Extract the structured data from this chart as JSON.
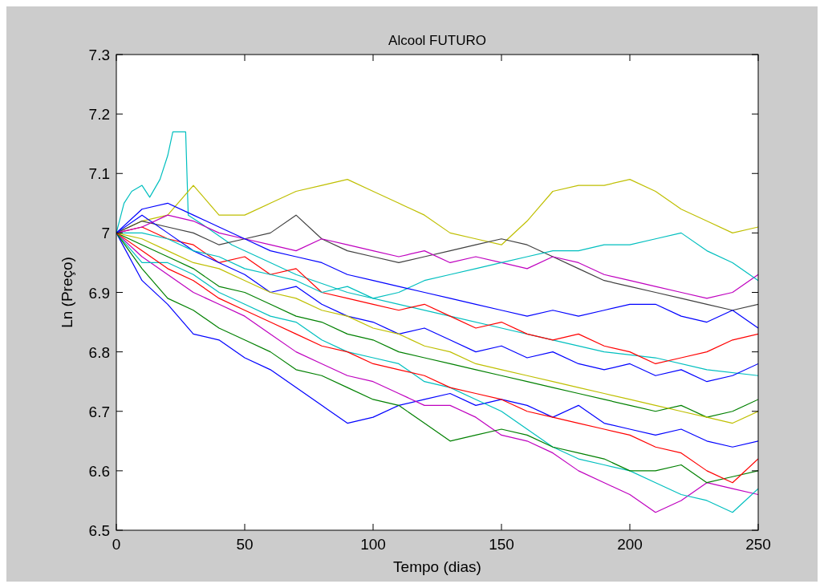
{
  "chart_data": {
    "type": "line",
    "title": "Alcool FUTURO",
    "xlabel": "Tempo (dias)",
    "ylabel": "Ln (Preço)",
    "xlim": [
      0,
      250
    ],
    "xticks": [
      0,
      50,
      100,
      150,
      200,
      250
    ],
    "ylim": [
      6.5,
      7.3
    ],
    "yticks": [
      6.5,
      6.6,
      6.7,
      6.8,
      6.9,
      7,
      7.1,
      7.2,
      7.3
    ],
    "x": [
      0,
      10,
      20,
      30,
      40,
      50,
      60,
      70,
      80,
      90,
      100,
      110,
      120,
      130,
      140,
      150,
      160,
      170,
      180,
      190,
      200,
      210,
      220,
      230,
      240,
      250
    ],
    "series": [
      {
        "color": "#00bfbf",
        "x": [
          0,
          3,
          6,
          10,
          13,
          17,
          20,
          22,
          27,
          28,
          35,
          45,
          55,
          70,
          90,
          110,
          130,
          150,
          170,
          190,
          210,
          230,
          250
        ],
        "values": [
          7.0,
          7.05,
          7.07,
          7.08,
          7.06,
          7.09,
          7.13,
          7.17,
          7.17,
          7.03,
          7.01,
          6.98,
          6.96,
          6.93,
          6.9,
          6.88,
          6.86,
          6.84,
          6.82,
          6.8,
          6.79,
          6.77,
          6.76
        ]
      },
      {
        "color": "#bfbf00",
        "values": [
          7.0,
          7.02,
          7.03,
          7.08,
          7.03,
          7.03,
          7.05,
          7.07,
          7.08,
          7.09,
          7.07,
          7.05,
          7.03,
          7.0,
          6.99,
          6.98,
          7.02,
          7.07,
          7.08,
          7.08,
          7.09,
          7.07,
          7.04,
          7.02,
          7.0,
          7.01
        ]
      },
      {
        "color": "#0000ff",
        "values": [
          7.0,
          6.92,
          6.88,
          6.83,
          6.82,
          6.79,
          6.77,
          6.74,
          6.71,
          6.68,
          6.69,
          6.71,
          6.72,
          6.73,
          6.71,
          6.72,
          6.71,
          6.69,
          6.71,
          6.68,
          6.67,
          6.66,
          6.67,
          6.65,
          6.64,
          6.65
        ]
      },
      {
        "color": "#bf00bf",
        "values": [
          7.0,
          6.96,
          6.93,
          6.9,
          6.88,
          6.86,
          6.83,
          6.8,
          6.78,
          6.76,
          6.75,
          6.73,
          6.71,
          6.71,
          6.69,
          6.66,
          6.65,
          6.63,
          6.6,
          6.58,
          6.56,
          6.53,
          6.55,
          6.58,
          6.57,
          6.56
        ]
      },
      {
        "color": "#00bfbf",
        "values": [
          7.0,
          6.95,
          6.95,
          6.93,
          6.9,
          6.88,
          6.86,
          6.85,
          6.82,
          6.8,
          6.79,
          6.78,
          6.75,
          6.74,
          6.72,
          6.7,
          6.67,
          6.64,
          6.62,
          6.61,
          6.6,
          6.58,
          6.56,
          6.55,
          6.53,
          6.57
        ]
      },
      {
        "color": "#008000",
        "values": [
          7.0,
          6.94,
          6.89,
          6.87,
          6.84,
          6.82,
          6.8,
          6.77,
          6.76,
          6.74,
          6.72,
          6.71,
          6.68,
          6.65,
          6.66,
          6.67,
          6.66,
          6.64,
          6.63,
          6.62,
          6.6,
          6.6,
          6.61,
          6.58,
          6.59,
          6.6
        ]
      },
      {
        "color": "#404040",
        "values": [
          7.0,
          7.02,
          7.01,
          7.0,
          6.98,
          6.99,
          7.0,
          7.03,
          6.99,
          6.97,
          6.96,
          6.95,
          6.96,
          6.97,
          6.98,
          6.99,
          6.98,
          6.96,
          6.94,
          6.92,
          6.91,
          6.9,
          6.89,
          6.88,
          6.87,
          6.88
        ]
      },
      {
        "color": "#ff0000",
        "values": [
          7.0,
          7.01,
          6.99,
          6.98,
          6.95,
          6.96,
          6.93,
          6.94,
          6.9,
          6.89,
          6.88,
          6.87,
          6.88,
          6.86,
          6.84,
          6.85,
          6.83,
          6.82,
          6.83,
          6.81,
          6.8,
          6.78,
          6.79,
          6.8,
          6.82,
          6.83
        ]
      },
      {
        "color": "#0000ff",
        "values": [
          7.0,
          7.03,
          7.0,
          6.97,
          6.95,
          6.93,
          6.9,
          6.91,
          6.88,
          6.86,
          6.85,
          6.83,
          6.84,
          6.82,
          6.8,
          6.81,
          6.79,
          6.8,
          6.78,
          6.77,
          6.78,
          6.76,
          6.77,
          6.75,
          6.76,
          6.78
        ]
      },
      {
        "color": "#008000",
        "values": [
          7.0,
          6.98,
          6.96,
          6.94,
          6.91,
          6.9,
          6.88,
          6.86,
          6.85,
          6.83,
          6.82,
          6.8,
          6.79,
          6.78,
          6.77,
          6.76,
          6.75,
          6.74,
          6.73,
          6.72,
          6.71,
          6.7,
          6.71,
          6.69,
          6.7,
          6.72
        ]
      },
      {
        "color": "#bf00bf",
        "values": [
          7.0,
          7.01,
          7.03,
          7.02,
          7.0,
          6.99,
          6.98,
          6.97,
          6.99,
          6.98,
          6.97,
          6.96,
          6.97,
          6.95,
          6.96,
          6.95,
          6.94,
          6.96,
          6.95,
          6.93,
          6.92,
          6.91,
          6.9,
          6.89,
          6.9,
          6.93
        ]
      },
      {
        "color": "#bfbf00",
        "values": [
          7.0,
          6.99,
          6.97,
          6.95,
          6.94,
          6.92,
          6.9,
          6.89,
          6.87,
          6.86,
          6.84,
          6.83,
          6.81,
          6.8,
          6.78,
          6.77,
          6.76,
          6.75,
          6.74,
          6.73,
          6.72,
          6.71,
          6.7,
          6.69,
          6.68,
          6.7
        ]
      },
      {
        "color": "#ff0000",
        "values": [
          7.0,
          6.97,
          6.94,
          6.92,
          6.89,
          6.87,
          6.85,
          6.83,
          6.81,
          6.8,
          6.78,
          6.77,
          6.76,
          6.74,
          6.73,
          6.72,
          6.7,
          6.69,
          6.68,
          6.67,
          6.66,
          6.64,
          6.63,
          6.6,
          6.58,
          6.62
        ]
      },
      {
        "color": "#00bfbf",
        "values": [
          7.0,
          7.0,
          6.99,
          6.97,
          6.96,
          6.94,
          6.93,
          6.92,
          6.9,
          6.91,
          6.89,
          6.9,
          6.92,
          6.93,
          6.94,
          6.95,
          6.96,
          6.97,
          6.97,
          6.98,
          6.98,
          6.99,
          7.0,
          6.97,
          6.95,
          6.92
        ]
      },
      {
        "color": "#0000ff",
        "values": [
          7.0,
          7.04,
          7.05,
          7.03,
          7.01,
          6.99,
          6.97,
          6.96,
          6.95,
          6.93,
          6.92,
          6.91,
          6.9,
          6.89,
          6.88,
          6.87,
          6.86,
          6.87,
          6.86,
          6.87,
          6.88,
          6.88,
          6.86,
          6.85,
          6.87,
          6.84
        ]
      }
    ]
  }
}
